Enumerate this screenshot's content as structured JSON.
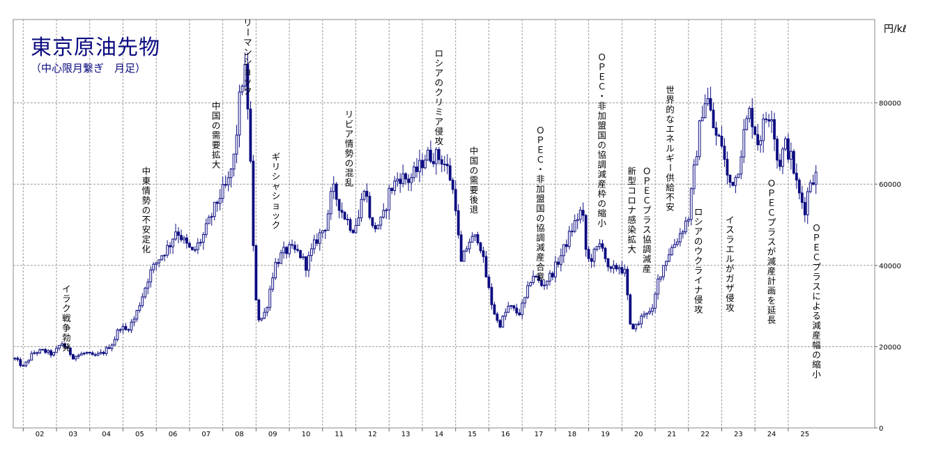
{
  "chart_data": {
    "type": "candlestick",
    "title": "東京原油先物",
    "subtitle": "（中心限月繋ぎ　月足）",
    "unit": "円/kℓ",
    "ylim": [
      0,
      100000
    ],
    "y_ticks": [
      0,
      20000,
      40000,
      60000,
      80000
    ],
    "grid": true,
    "x_ticks": [
      "02",
      "03",
      "04",
      "05",
      "06",
      "07",
      "08",
      "09",
      "10",
      "11",
      "12",
      "13",
      "14",
      "15",
      "16",
      "17",
      "18",
      "19",
      "20",
      "21",
      "22",
      "23",
      "24",
      "25"
    ],
    "x_range": [
      2001.7,
      2027.6
    ],
    "colors": {
      "candle": "#0b0b80",
      "grid": "#9a9a9a",
      "text": "#000000",
      "title": "#0b0b80"
    },
    "anchors": [
      [
        2001.75,
        17000
      ],
      [
        2002.0,
        15000
      ],
      [
        2002.3,
        18500
      ],
      [
        2002.6,
        19000
      ],
      [
        2002.9,
        18000
      ],
      [
        2003.15,
        21000
      ],
      [
        2003.35,
        19000
      ],
      [
        2003.5,
        17500
      ],
      [
        2003.9,
        18500
      ],
      [
        2004.1,
        17500
      ],
      [
        2004.4,
        18500
      ],
      [
        2004.7,
        21000
      ],
      [
        2004.9,
        25000
      ],
      [
        2005.1,
        24000
      ],
      [
        2005.35,
        27000
      ],
      [
        2005.6,
        33000
      ],
      [
        2005.8,
        38000
      ],
      [
        2006.1,
        42000
      ],
      [
        2006.4,
        45000
      ],
      [
        2006.6,
        49000
      ],
      [
        2006.9,
        45000
      ],
      [
        2007.1,
        43000
      ],
      [
        2007.4,
        47000
      ],
      [
        2007.7,
        53000
      ],
      [
        2007.9,
        57000
      ],
      [
        2008.15,
        60000
      ],
      [
        2008.35,
        67000
      ],
      [
        2008.55,
        85000
      ],
      [
        2008.7,
        88000
      ],
      [
        2008.85,
        62000
      ],
      [
        2008.95,
        35000
      ],
      [
        2009.1,
        26000
      ],
      [
        2009.3,
        29000
      ],
      [
        2009.55,
        40000
      ],
      [
        2009.8,
        43000
      ],
      [
        2010.0,
        44000
      ],
      [
        2010.3,
        43000
      ],
      [
        2010.5,
        40000
      ],
      [
        2010.8,
        46000
      ],
      [
        2011.1,
        50000
      ],
      [
        2011.3,
        59000
      ],
      [
        2011.6,
        53000
      ],
      [
        2011.9,
        49000
      ],
      [
        2012.1,
        52000
      ],
      [
        2012.25,
        60000
      ],
      [
        2012.5,
        49000
      ],
      [
        2012.8,
        51000
      ],
      [
        2013.0,
        58000
      ],
      [
        2013.3,
        62000
      ],
      [
        2013.6,
        61000
      ],
      [
        2013.9,
        64000
      ],
      [
        2014.1,
        67000
      ],
      [
        2014.4,
        67000
      ],
      [
        2014.6,
        66000
      ],
      [
        2014.8,
        63000
      ],
      [
        2015.0,
        55000
      ],
      [
        2015.15,
        40000
      ],
      [
        2015.4,
        46000
      ],
      [
        2015.7,
        47000
      ],
      [
        2015.9,
        38000
      ],
      [
        2016.1,
        30000
      ],
      [
        2016.3,
        25000
      ],
      [
        2016.6,
        30000
      ],
      [
        2016.9,
        28000
      ],
      [
        2017.1,
        32000
      ],
      [
        2017.3,
        38000
      ],
      [
        2017.6,
        35000
      ],
      [
        2017.9,
        38000
      ],
      [
        2018.2,
        43000
      ],
      [
        2018.5,
        49000
      ],
      [
        2018.8,
        54000
      ],
      [
        2018.95,
        41000
      ],
      [
        2019.1,
        42000
      ],
      [
        2019.4,
        46000
      ],
      [
        2019.6,
        38000
      ],
      [
        2019.9,
        40000
      ],
      [
        2020.1,
        38000
      ],
      [
        2020.25,
        25000
      ],
      [
        2020.45,
        25000
      ],
      [
        2020.7,
        29000
      ],
      [
        2020.9,
        28000
      ],
      [
        2021.1,
        37000
      ],
      [
        2021.4,
        43000
      ],
      [
        2021.7,
        47000
      ],
      [
        2022.0,
        52000
      ],
      [
        2022.15,
        62000
      ],
      [
        2022.4,
        78000
      ],
      [
        2022.55,
        82000
      ],
      [
        2022.8,
        72000
      ],
      [
        2023.0,
        70000
      ],
      [
        2023.2,
        60000
      ],
      [
        2023.45,
        62000
      ],
      [
        2023.7,
        74000
      ],
      [
        2023.85,
        78000
      ],
      [
        2024.1,
        70000
      ],
      [
        2024.3,
        76000
      ],
      [
        2024.5,
        78000
      ],
      [
        2024.7,
        64000
      ],
      [
        2024.9,
        70000
      ],
      [
        2025.1,
        66000
      ],
      [
        2025.3,
        58000
      ],
      [
        2025.5,
        54000
      ],
      [
        2025.65,
        61000
      ],
      [
        2025.8,
        62000
      ]
    ],
    "annotations": [
      {
        "text": "イラク戦争勃発",
        "x": 2003.3,
        "y": 35500,
        "anchor": "top"
      },
      {
        "text": "中東情勢の不安定化",
        "x": 2005.7,
        "y": 64500,
        "anchor": "top"
      },
      {
        "text": "中国の需要拡大",
        "x": 2007.8,
        "y": 80500,
        "anchor": "top"
      },
      {
        "text": "リーマンショック",
        "x": 2008.75,
        "y": 101000,
        "anchor": "top"
      },
      {
        "text": "ギリシャショック",
        "x": 2009.6,
        "y": 68000,
        "anchor": "top"
      },
      {
        "text": "リビア情勢の混乱",
        "x": 2011.8,
        "y": 78500,
        "anchor": "top"
      },
      {
        "text": "ロシアのクリミア侵攻",
        "x": 2014.5,
        "y": 93500,
        "anchor": "top"
      },
      {
        "text": "中国の需要後退",
        "x": 2015.55,
        "y": 69500,
        "anchor": "top"
      },
      {
        "text": "ＯＰＥＣ・非加盟国の協調減産合意",
        "x": 2017.55,
        "y": 74500,
        "anchor": "top"
      },
      {
        "text": "ＯＰＥＣ・非加盟国の協調減産枠の縮小",
        "x": 2019.4,
        "y": 92500,
        "anchor": "top"
      },
      {
        "text": "新型コロナ感染拡大",
        "x": 2020.3,
        "y": 64500,
        "anchor": "top"
      },
      {
        "text": "ＯＰＥＣプラス協調減産",
        "x": 2020.75,
        "y": 64500,
        "anchor": "top"
      },
      {
        "text": "世界的なエネルギー供給不安",
        "x": 2021.45,
        "y": 84500,
        "anchor": "top"
      },
      {
        "text": "ロシアのウクライナ侵攻",
        "x": 2022.3,
        "y": 54500,
        "anchor": "top"
      },
      {
        "text": "イスラエルがガザ侵攻",
        "x": 2023.25,
        "y": 52500,
        "anchor": "top"
      },
      {
        "text": "ＯＰＥＣプラスが減産計画を延長",
        "x": 2024.5,
        "y": 61500,
        "anchor": "top"
      },
      {
        "text": "ＯＰＥＣプラスによる減産幅の縮小",
        "x": 2025.85,
        "y": 50500,
        "anchor": "top"
      }
    ]
  }
}
